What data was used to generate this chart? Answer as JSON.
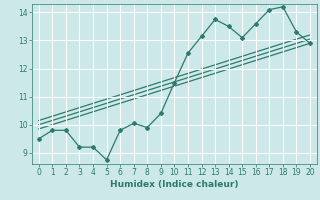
{
  "xlabel": "Humidex (Indice chaleur)",
  "ylabel": "",
  "bg_color": "#cce8e8",
  "grid_color": "#ffffff",
  "line_color": "#2d7a6e",
  "xlim": [
    -0.5,
    20.5
  ],
  "ylim": [
    8.6,
    14.3
  ],
  "xticks": [
    0,
    1,
    2,
    3,
    4,
    5,
    6,
    7,
    8,
    9,
    10,
    11,
    12,
    13,
    14,
    15,
    16,
    17,
    18,
    19,
    20
  ],
  "yticks": [
    9,
    10,
    11,
    12,
    13,
    14
  ],
  "data_x": [
    0,
    1,
    2,
    3,
    4,
    5,
    6,
    7,
    8,
    9,
    10,
    11,
    12,
    13,
    14,
    15,
    16,
    17,
    18,
    19,
    20
  ],
  "data_y": [
    9.5,
    9.8,
    9.8,
    9.2,
    9.2,
    8.75,
    9.8,
    10.05,
    9.9,
    10.4,
    11.5,
    12.55,
    13.15,
    13.75,
    13.5,
    13.1,
    13.6,
    14.1,
    14.2,
    13.3,
    12.9
  ],
  "line1_x": [
    0,
    20
  ],
  "line1_y": [
    9.85,
    12.9
  ],
  "line2_x": [
    0,
    20
  ],
  "line2_y": [
    10.0,
    13.05
  ],
  "line3_x": [
    0,
    20
  ],
  "line3_y": [
    10.15,
    13.2
  ]
}
